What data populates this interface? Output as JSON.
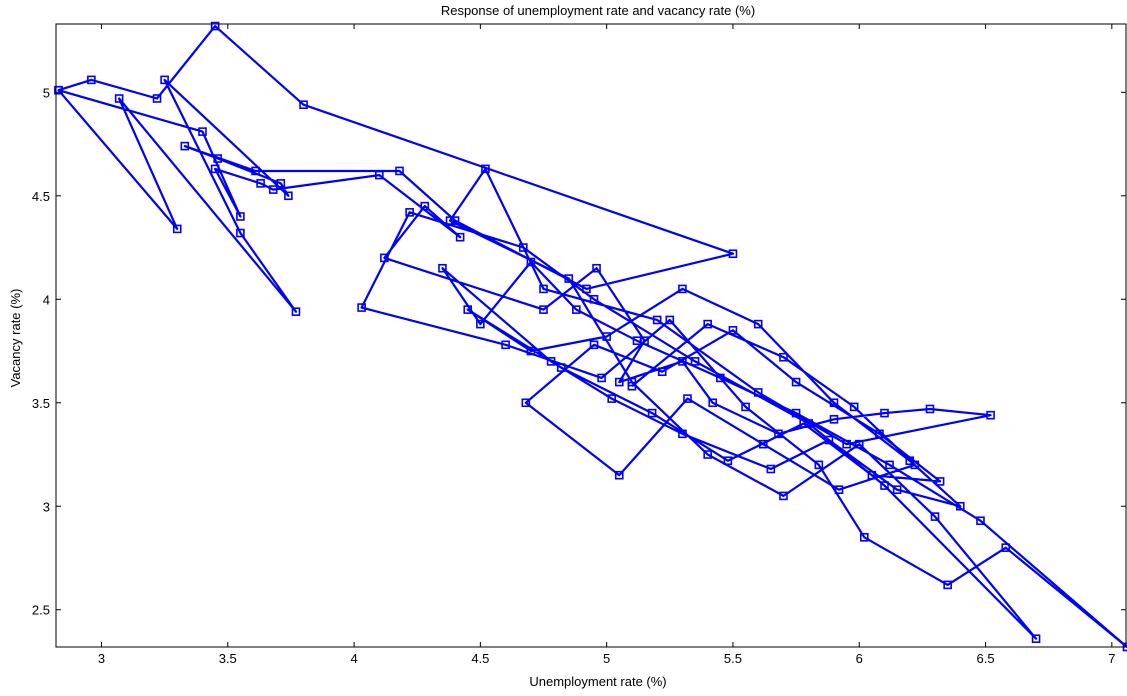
{
  "chart_data": {
    "type": "line",
    "title": "Response of unemployment rate and vacancy rate (%)",
    "xlabel": "Unemployment rate (%)",
    "ylabel": "Vacancy rate (%)",
    "xlim": [
      2.82,
      7.06
    ],
    "ylim": [
      2.32,
      5.33
    ],
    "xticks": [
      3,
      3.5,
      4,
      4.5,
      5,
      5.5,
      6,
      6.5,
      7
    ],
    "xtick_labels": [
      "3",
      "3.5",
      "4",
      "4.5",
      "5",
      "5.5",
      "6",
      "6.5",
      "7"
    ],
    "yticks": [
      2.5,
      3,
      3.5,
      4,
      4.5,
      5
    ],
    "ytick_labels": [
      "2.5",
      "3",
      "3.5",
      "4",
      "4.5",
      "5"
    ],
    "grid": false,
    "marker": "square",
    "line_color": "#0000ff",
    "series": [
      {
        "x": [
          2.83,
          2.96,
          3.22,
          3.45,
          3.8,
          5.5,
          4.92,
          4.4,
          4.18,
          3.61,
          3.33,
          3.46,
          3.71,
          3.74,
          3.25,
          3.55,
          3.77,
          3.07,
          3.3,
          2.83,
          3.4,
          3.55,
          3.45,
          3.63,
          3.68,
          4.1,
          4.42,
          4.28,
          4.12,
          4.75,
          4.96,
          5.15,
          5.05,
          5.3,
          5.42,
          5.68,
          5.9,
          6.1,
          6.28,
          6.52,
          5.95,
          5.6,
          5.2,
          4.75,
          4.52,
          4.38,
          4.85,
          5.1,
          5.4,
          5.7,
          6.0,
          6.3,
          6.7,
          6.1,
          5.8,
          5.35,
          4.95,
          4.67,
          4.22,
          4.03,
          4.6,
          4.98,
          5.25,
          5.55,
          5.84,
          6.02,
          6.35,
          6.58,
          7.06,
          6.48,
          6.12,
          5.75,
          5.45,
          5.12,
          4.88,
          4.7,
          4.5,
          4.35,
          4.78,
          5.02,
          5.3,
          5.65,
          5.88,
          6.15,
          6.4,
          6.2,
          5.9,
          5.6,
          5.3,
          5.0,
          4.7,
          4.45,
          4.82,
          5.18,
          5.48,
          5.78,
          6.05,
          6.32,
          6.08,
          5.75,
          5.5,
          5.22,
          4.95,
          4.68,
          5.05,
          5.32,
          5.62,
          5.92,
          6.22,
          5.98,
          5.7,
          5.4,
          5.1
        ],
        "y": [
          5.01,
          5.06,
          4.97,
          5.32,
          4.94,
          4.22,
          4.05,
          4.38,
          4.62,
          4.62,
          4.74,
          4.68,
          4.56,
          4.5,
          5.06,
          4.32,
          3.94,
          4.97,
          4.34,
          5.01,
          4.81,
          4.4,
          4.63,
          4.56,
          4.53,
          4.6,
          4.3,
          4.45,
          4.2,
          3.95,
          4.15,
          3.8,
          3.6,
          3.7,
          3.5,
          3.35,
          3.42,
          3.45,
          3.47,
          3.44,
          3.3,
          3.55,
          3.9,
          4.05,
          4.63,
          4.38,
          4.1,
          3.6,
          3.25,
          3.05,
          3.3,
          2.95,
          2.36,
          3.1,
          3.4,
          3.7,
          4.0,
          4.25,
          4.42,
          3.96,
          3.78,
          3.62,
          3.9,
          3.48,
          3.2,
          2.85,
          2.62,
          2.8,
          2.32,
          2.93,
          3.2,
          3.45,
          3.62,
          3.8,
          3.95,
          4.18,
          3.88,
          4.15,
          3.7,
          3.52,
          3.35,
          3.18,
          3.32,
          3.08,
          3.0,
          3.22,
          3.5,
          3.88,
          4.05,
          3.82,
          3.75,
          3.95,
          3.67,
          3.45,
          3.22,
          3.4,
          3.15,
          3.12,
          3.35,
          3.6,
          3.85,
          3.65,
          3.78,
          3.5,
          3.15,
          3.52,
          3.3,
          3.08,
          3.2,
          3.48,
          3.72,
          3.88,
          3.58
        ]
      }
    ]
  }
}
